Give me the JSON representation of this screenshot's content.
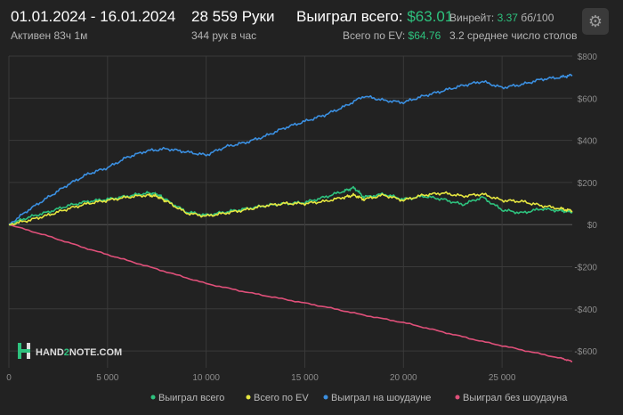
{
  "header": {
    "date_range": "01.01.2024 - 16.01.2024",
    "active": "Активен 83ч 1м",
    "hands": "28 559 Руки",
    "hands_rate": "344 рук в час",
    "won_total_label": "Выиграл всего:",
    "won_total_value": "$63.01",
    "ev_total_label": "Всего по EV:",
    "ev_total_value": "$64.76",
    "winrate_label": "Винрейт:",
    "winrate_value": "3.37",
    "winrate_unit": "бб/100",
    "avg_tables": "3.2 среднее число столов",
    "settings_icon": "gear-icon"
  },
  "logo": {
    "text_prefix": "HAND",
    "text_mid": "2",
    "text_suffix": "NOTE.COM"
  },
  "colors": {
    "background": "#222222",
    "won_total": "#2ec27e",
    "ev": "#e6e640",
    "showdown": "#3b8fe0",
    "no_showdown": "#e0507a",
    "grid": "#3a3a3a",
    "zero_line": "#5a5a5a"
  },
  "chart_data": {
    "type": "line",
    "x_ticks": [
      0,
      5000,
      10000,
      15000,
      20000,
      25000
    ],
    "x_tick_labels": [
      "0",
      "5 000",
      "10 000",
      "15 000",
      "20 000",
      "25 000"
    ],
    "y_ticks": [
      800,
      600,
      400,
      200,
      0,
      -200,
      -400,
      -600
    ],
    "y_tick_labels": [
      "$800",
      "$600",
      "$400",
      "$200",
      "$0",
      "-$200",
      "-$400",
      "-$600"
    ],
    "xlim": [
      0,
      28559
    ],
    "ylim": [
      -680,
      800
    ],
    "grid": true,
    "legend_position": "bottom-right",
    "series": [
      {
        "name": "Выиграл всего",
        "key": "won_total",
        "x": [
          0,
          1000,
          2000,
          3000,
          4000,
          5000,
          6000,
          7000,
          7500,
          8000,
          9000,
          10000,
          11000,
          12000,
          13000,
          14000,
          15000,
          16000,
          17000,
          17500,
          18000,
          19000,
          20000,
          21000,
          22000,
          23000,
          24000,
          25000,
          26000,
          27000,
          28000,
          28559
        ],
        "y": [
          0,
          35,
          60,
          90,
          110,
          120,
          135,
          150,
          145,
          115,
          60,
          45,
          60,
          75,
          90,
          100,
          105,
          130,
          160,
          175,
          130,
          145,
          120,
          135,
          120,
          95,
          130,
          70,
          55,
          75,
          65,
          60
        ]
      },
      {
        "name": "Всего по EV",
        "key": "ev",
        "x": [
          0,
          1000,
          2000,
          3000,
          4000,
          5000,
          6000,
          7000,
          7500,
          8000,
          9000,
          10000,
          11000,
          12000,
          13000,
          14000,
          15000,
          16000,
          17000,
          17500,
          18000,
          19000,
          20000,
          21000,
          22000,
          23000,
          24000,
          25000,
          26000,
          27000,
          28000,
          28559
        ],
        "y": [
          0,
          20,
          45,
          75,
          100,
          115,
          130,
          140,
          135,
          110,
          55,
          40,
          55,
          70,
          90,
          100,
          100,
          110,
          130,
          140,
          120,
          140,
          115,
          140,
          150,
          135,
          145,
          115,
          110,
          90,
          75,
          65
        ]
      },
      {
        "name": "Выиграл на шоудауне",
        "key": "showdown",
        "x": [
          0,
          1000,
          2000,
          3000,
          4000,
          5000,
          6000,
          7000,
          8000,
          9000,
          10000,
          11000,
          12000,
          13000,
          14000,
          15000,
          16000,
          17000,
          18000,
          19000,
          20000,
          21000,
          22000,
          23000,
          24000,
          25000,
          26000,
          27000,
          28000,
          28559
        ],
        "y": [
          0,
          70,
          130,
          190,
          240,
          270,
          320,
          350,
          360,
          345,
          330,
          370,
          390,
          420,
          460,
          490,
          520,
          560,
          610,
          590,
          580,
          610,
          635,
          660,
          680,
          650,
          665,
          690,
          700,
          710
        ]
      },
      {
        "name": "Выиграл без шоудауна",
        "key": "no_showdown",
        "x": [
          0,
          2000,
          4000,
          6000,
          8000,
          10000,
          12000,
          14000,
          16000,
          18000,
          20000,
          22000,
          24000,
          26000,
          28000,
          28559
        ],
        "y": [
          0,
          -55,
          -115,
          -170,
          -225,
          -280,
          -320,
          -355,
          -390,
          -430,
          -465,
          -510,
          -555,
          -595,
          -635,
          -650
        ]
      }
    ]
  }
}
